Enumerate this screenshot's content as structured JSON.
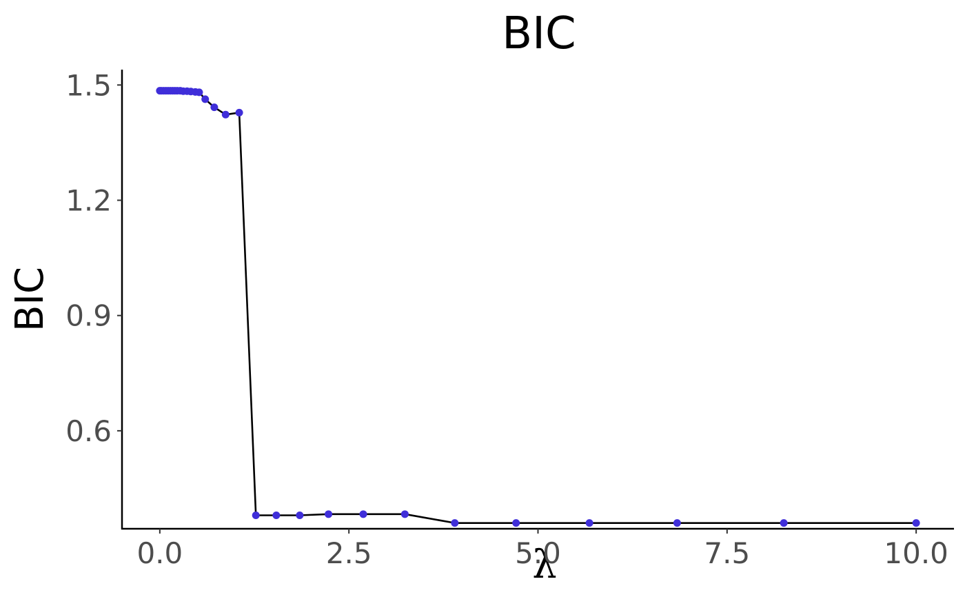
{
  "chart_data": {
    "type": "line",
    "title": "BIC",
    "xlabel": "λ",
    "ylabel": "BIC",
    "xlim": [
      -0.5,
      10.5
    ],
    "ylim": [
      0.345,
      1.54
    ],
    "xticks": [
      0.0,
      2.5,
      5.0,
      7.5,
      10.0
    ],
    "xtick_labels": [
      "0.0",
      "2.5",
      "5.0",
      "7.5",
      "10.0"
    ],
    "yticks": [
      0.6,
      0.9,
      1.2,
      1.5
    ],
    "ytick_labels": [
      "0.6",
      "0.9",
      "1.2",
      "1.5"
    ],
    "grid": false,
    "line_color": "#000000",
    "point_color": "#3f2ed9",
    "series": [
      {
        "x": [
          0.0,
          0.02,
          0.05,
          0.08,
          0.11,
          0.14,
          0.17,
          0.2,
          0.23,
          0.27,
          0.31,
          0.36,
          0.41,
          0.47,
          0.52,
          0.6,
          0.72,
          0.87,
          1.05,
          1.27,
          1.54,
          1.85,
          2.23,
          2.69,
          3.24,
          3.9,
          4.71,
          5.68,
          6.84,
          8.25,
          10.0
        ],
        "y": [
          1.485,
          1.485,
          1.485,
          1.485,
          1.485,
          1.485,
          1.485,
          1.485,
          1.485,
          1.485,
          1.484,
          1.484,
          1.483,
          1.482,
          1.481,
          1.463,
          1.442,
          1.423,
          1.428,
          0.38,
          0.38,
          0.38,
          0.383,
          0.383,
          0.383,
          0.36,
          0.36,
          0.36,
          0.36,
          0.36,
          0.36
        ]
      }
    ]
  }
}
